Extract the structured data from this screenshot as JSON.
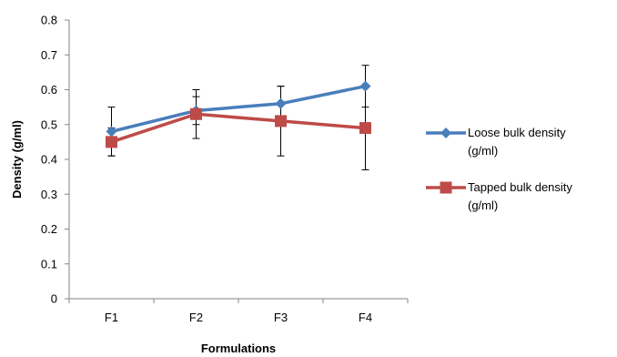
{
  "chart_data": {
    "type": "line",
    "title": "",
    "xlabel": "Formulations",
    "ylabel": "Density (g/ml)",
    "categories": [
      "F1",
      "F2",
      "F3",
      "F4"
    ],
    "ylim": [
      0,
      0.8
    ],
    "yticks": [
      "0",
      "0.1",
      "0.2",
      "0.3",
      "0.4",
      "0.5",
      "0.6",
      "0.7",
      "0.8"
    ],
    "grid": false,
    "legend": "right",
    "series": [
      {
        "name": "Loose bulk density (g/ml)",
        "legend_lines": [
          "Loose bulk density",
          "(g/ml)"
        ],
        "values": [
          0.48,
          0.54,
          0.56,
          0.61
        ],
        "error_low": [
          0.41,
          0.5,
          0.51,
          0.55
        ],
        "error_high": [
          0.55,
          0.58,
          0.61,
          0.67
        ],
        "color": "#4a7ebb",
        "marker": "diamond"
      },
      {
        "name": "Tapped bulk density (g/ml)",
        "legend_lines": [
          "Tapped bulk density",
          "(g/ml)"
        ],
        "values": [
          0.45,
          0.53,
          0.51,
          0.49
        ],
        "error_low": [
          0.41,
          0.46,
          0.41,
          0.37
        ],
        "error_high": [
          0.49,
          0.6,
          0.61,
          0.61
        ],
        "color": "#be4b48",
        "marker": "square"
      }
    ]
  }
}
